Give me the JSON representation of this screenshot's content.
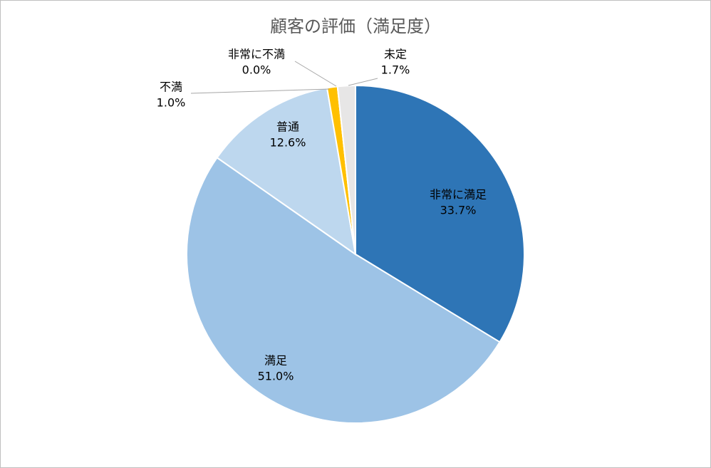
{
  "chart_data": {
    "type": "pie",
    "title": "顧客の評価（満足度）",
    "categories": [
      "非常に満足",
      "満足",
      "普通",
      "不満",
      "非常に不満",
      "未定"
    ],
    "values": [
      33.7,
      51.0,
      12.6,
      1.0,
      0.0,
      1.7
    ],
    "value_labels": [
      "33.7%",
      "51.0%",
      "12.6%",
      "1.0%",
      "0.0%",
      "1.7%"
    ],
    "colors": [
      "#2e75b6",
      "#9dc3e6",
      "#bdd7ee",
      "#ffc000",
      "#a5a5a5",
      "#e7e6e6"
    ]
  }
}
